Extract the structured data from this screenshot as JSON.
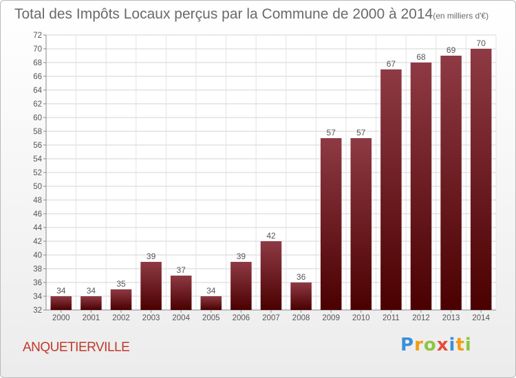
{
  "header": {
    "title": "Total des Impôts Locaux perçus par la Commune de 2000 à 2014",
    "unit": "(en milliers d'€)"
  },
  "commune_name": "ANQUETIERVILLE",
  "brand": {
    "letters": [
      "P",
      "r",
      "o",
      "x",
      "i",
      "t",
      "i"
    ],
    "colors": [
      "#3b8fd8",
      "#f39c12",
      "#8cc63f",
      "#e74c3c",
      "#3b8fd8",
      "#f39c12",
      "#8cc63f"
    ]
  },
  "colors": {
    "bar_top": "#8e3a44",
    "bar_bottom": "#4a0000",
    "text": "#555555",
    "grid": "#d3d3d3",
    "commune": "#c0392b"
  },
  "chart_data": {
    "type": "bar",
    "categories": [
      "2000",
      "2001",
      "2002",
      "2003",
      "2004",
      "2005",
      "2006",
      "2007",
      "2008",
      "2009",
      "2010",
      "2011",
      "2012",
      "2013",
      "2014"
    ],
    "values": [
      34,
      34,
      35,
      39,
      37,
      34,
      39,
      42,
      36,
      57,
      57,
      67,
      68,
      69,
      70
    ],
    "title": "Total des Impôts Locaux perçus par la Commune de 2000 à 2014",
    "xlabel": "",
    "ylabel": "",
    "ylim": [
      32,
      72
    ],
    "ytick_step": 2,
    "grid": true,
    "legend": "none"
  }
}
